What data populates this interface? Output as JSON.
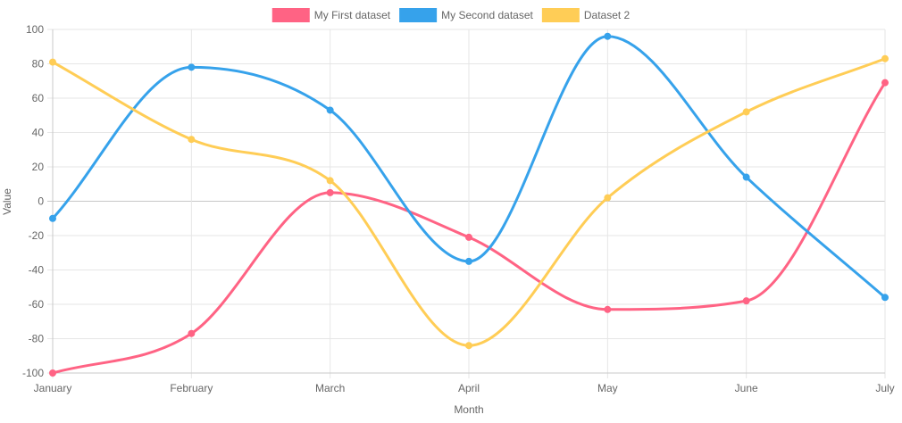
{
  "chart_data": {
    "type": "line",
    "categories": [
      "January",
      "February",
      "March",
      "April",
      "May",
      "June",
      "July"
    ],
    "xlabel": "Month",
    "ylabel": "Value",
    "ylim": [
      -100,
      100
    ],
    "yticks": [
      100,
      80,
      60,
      40,
      20,
      0,
      -20,
      -40,
      -60,
      -80,
      -100
    ],
    "grid": true,
    "legend_position": "top",
    "series": [
      {
        "name": "My First dataset",
        "color": "#ff6384",
        "values": [
          -100,
          -77,
          5,
          -21,
          -63,
          -58,
          69
        ]
      },
      {
        "name": "My Second dataset",
        "color": "#36a2eb",
        "values": [
          -10,
          78,
          53,
          -35,
          96,
          14,
          -56
        ]
      },
      {
        "name": "Dataset 2",
        "color": "#ffcd56",
        "values": [
          81,
          36,
          12,
          -84,
          2,
          52,
          83
        ]
      }
    ]
  }
}
